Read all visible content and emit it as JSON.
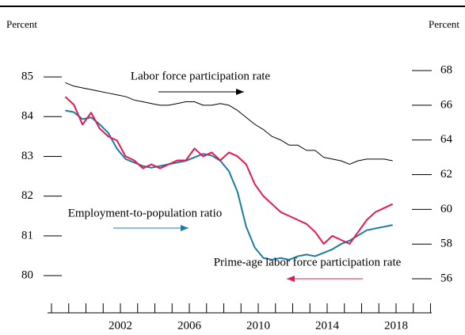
{
  "chart_data": {
    "type": "line",
    "y_label": "Percent",
    "y2_label": "Percent",
    "x": [
      1998.8,
      1999.3,
      1999.8,
      2000.3,
      2000.8,
      2001.3,
      2001.8,
      2002.3,
      2002.8,
      2003.3,
      2003.8,
      2004.3,
      2004.8,
      2005.3,
      2005.8,
      2006.3,
      2006.8,
      2007.3,
      2007.8,
      2008.3,
      2008.8,
      2009.3,
      2009.8,
      2010.3,
      2010.8,
      2011.3,
      2011.8,
      2012.3,
      2012.8,
      2013.3,
      2013.8,
      2014.3,
      2014.8,
      2015.3,
      2015.8,
      2016.3,
      2016.8,
      2017.3,
      2017.8
    ],
    "series": [
      {
        "name": "Labor force participation rate",
        "color": "#000000",
        "axis": "y2",
        "values": [
          67.3,
          67.1,
          67.0,
          66.9,
          66.8,
          66.7,
          66.6,
          66.5,
          66.3,
          66.2,
          66.1,
          66.0,
          66.0,
          66.1,
          66.2,
          66.2,
          66.0,
          66.0,
          66.1,
          66.0,
          65.7,
          65.3,
          64.9,
          64.6,
          64.2,
          64.0,
          63.7,
          63.7,
          63.4,
          63.4,
          63.0,
          62.9,
          62.8,
          62.6,
          62.8,
          62.9,
          62.9,
          62.9,
          62.8
        ]
      },
      {
        "name": "Employment-to-population ratio",
        "color": "#1b7ca8",
        "axis": "y2",
        "values": [
          65.7,
          65.6,
          65.2,
          65.3,
          64.9,
          64.4,
          63.5,
          62.9,
          62.7,
          62.5,
          62.4,
          62.5,
          62.6,
          62.7,
          62.8,
          63.0,
          63.2,
          63.1,
          62.8,
          62.2,
          61.0,
          59.0,
          57.8,
          57.2,
          57.1,
          57.2,
          57.1,
          57.3,
          57.4,
          57.3,
          57.5,
          57.7,
          58.0,
          58.2,
          58.5,
          58.8,
          58.9,
          59.0,
          59.1
        ]
      },
      {
        "name": "Prime-age labor force participation rate",
        "color": "#e8174f",
        "axis": "y",
        "values": [
          84.5,
          84.3,
          83.8,
          84.1,
          83.7,
          83.5,
          83.4,
          83.0,
          82.9,
          82.7,
          82.8,
          82.7,
          82.8,
          82.9,
          82.9,
          83.2,
          83.0,
          83.1,
          82.9,
          83.1,
          83.0,
          82.8,
          82.3,
          82.0,
          81.8,
          81.6,
          81.5,
          81.4,
          81.3,
          81.1,
          80.8,
          81.0,
          80.9,
          80.8,
          81.1,
          81.4,
          81.6,
          81.7,
          81.8
        ]
      }
    ],
    "xlim": [
      1997.77,
      2020.07
    ],
    "xticks": [
      2002,
      2006,
      2010,
      2014,
      2018
    ],
    "xminorticks": [
      1998,
      1999,
      2000,
      2001,
      2002,
      2003,
      2004,
      2005,
      2006,
      2007,
      2008,
      2009,
      2010,
      2011,
      2012,
      2013,
      2014,
      2015,
      2016,
      2017,
      2018,
      2019,
      2020
    ],
    "ylim": [
      79.064,
      85.54
    ],
    "yticks": [
      80,
      81,
      82,
      83,
      84,
      85
    ],
    "y2lim": [
      54.04,
      68.87
    ],
    "y2ticks": [
      56,
      58,
      60,
      62,
      64,
      66,
      68
    ]
  }
}
